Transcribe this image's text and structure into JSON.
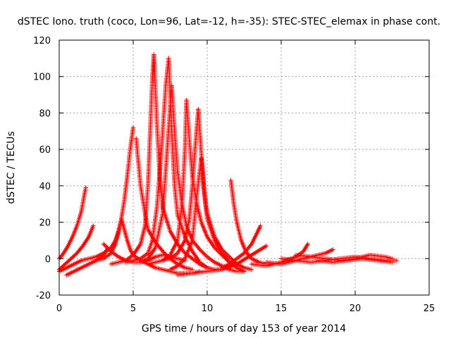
{
  "chart_data": {
    "type": "scatter",
    "title": "dSTEC Iono. truth (coco, Lon=96, Lat=-12, h=-35): STEC-STEC_elemax in phase cont.",
    "xlabel": "GPS time / hours of day 153 of year 2014",
    "ylabel": "dSTEC  / TECUs",
    "xlim": [
      0,
      25
    ],
    "ylim": [
      -20,
      120
    ],
    "x_ticks": [
      "0",
      "5",
      "10",
      "15",
      "20",
      "25"
    ],
    "y_ticks": [
      "-20",
      "0",
      "20",
      "40",
      "60",
      "80",
      "100",
      "120"
    ],
    "grid": true,
    "marker": "+",
    "series_color": "#ff0000",
    "series": [
      {
        "x": [
          0.0,
          0.3,
          0.6,
          0.9,
          1.2,
          1.5,
          1.7,
          1.8
        ],
        "y": [
          0,
          3,
          7,
          12,
          18,
          26,
          35,
          39
        ]
      },
      {
        "x": [
          0.0,
          0.4,
          0.8,
          1.2,
          1.6,
          2.0,
          2.3
        ],
        "y": [
          -6,
          -3,
          0,
          3,
          7,
          12,
          18
        ]
      },
      {
        "x": [
          0.0,
          0.5,
          1.0,
          1.5,
          2.0,
          2.5,
          3.0,
          3.5,
          3.8,
          4.0,
          4.2,
          4.4,
          4.6,
          4.8,
          5.0
        ],
        "y": [
          -7,
          -5,
          -3,
          -1,
          0,
          1,
          3,
          6,
          10,
          15,
          22,
          32,
          45,
          60,
          72
        ]
      },
      {
        "x": [
          0.5,
          1.0,
          1.5,
          2.0,
          2.5,
          3.0,
          3.3
        ],
        "y": [
          -9,
          -7,
          -5,
          -3,
          -1,
          2,
          6
        ]
      },
      {
        "x": [
          2.5,
          3.0,
          3.5,
          3.8,
          4.0,
          4.2,
          4.4,
          4.6,
          4.8,
          5.0,
          5.5,
          6.0,
          6.5,
          7.0,
          7.5,
          8.0,
          8.5,
          9.0,
          9.5
        ],
        "y": [
          -1,
          0,
          3,
          8,
          14,
          22,
          16,
          10,
          5,
          2,
          -1,
          -3,
          -5,
          -6,
          -7,
          -8,
          -8,
          -8,
          -7
        ]
      },
      {
        "x": [
          3.0,
          3.5,
          4.0,
          4.5,
          5.0,
          5.5,
          6.0,
          6.5,
          7.0,
          7.5,
          8.0,
          8.5
        ],
        "y": [
          8,
          4,
          1,
          -1,
          -2,
          -2,
          -1,
          1,
          2,
          1,
          0,
          -1
        ]
      },
      {
        "x": [
          5.2,
          5.5,
          5.8,
          6.0,
          6.5,
          7.0,
          7.5,
          8.0,
          8.5,
          9.0
        ],
        "y": [
          66,
          40,
          25,
          16,
          9,
          4,
          0,
          -3,
          -5,
          -6
        ]
      },
      {
        "x": [
          3.5,
          4.0,
          4.5,
          5.0,
          5.5,
          5.8,
          6.0,
          6.2,
          6.3,
          6.4
        ],
        "y": [
          -3,
          -2,
          -1,
          2,
          8,
          18,
          40,
          80,
          100,
          112
        ]
      },
      {
        "x": [
          6.4,
          6.6,
          6.8,
          7.0,
          7.5,
          8.0,
          8.5,
          9.0,
          9.5,
          10.0
        ],
        "y": [
          112,
          75,
          45,
          28,
          15,
          8,
          3,
          0,
          -3,
          -5
        ]
      },
      {
        "x": [
          4.5,
          5.0,
          5.5,
          6.0,
          6.3,
          6.6,
          6.9,
          7.2,
          7.4
        ],
        "y": [
          -2,
          -1,
          0,
          3,
          10,
          28,
          58,
          95,
          110
        ]
      },
      {
        "x": [
          7.4,
          7.6,
          7.8,
          8.0,
          8.5,
          9.0,
          9.5,
          10.0,
          10.5,
          11.0
        ],
        "y": [
          110,
          70,
          40,
          24,
          12,
          4,
          -2,
          -5,
          -6,
          -6
        ]
      },
      {
        "x": [
          5.5,
          6.0,
          6.5,
          7.0,
          7.3,
          7.6
        ],
        "y": [
          -2,
          0,
          6,
          25,
          60,
          95
        ]
      },
      {
        "x": [
          7.6,
          7.8,
          8.0,
          8.3,
          8.6,
          9.0,
          9.5,
          10.0,
          10.5,
          11.0,
          11.5,
          12.0,
          12.5
        ],
        "y": [
          95,
          70,
          48,
          30,
          18,
          10,
          5,
          1,
          -2,
          -4,
          -6,
          -7,
          -7
        ]
      },
      {
        "x": [
          6.0,
          6.5,
          7.0,
          7.5,
          8.0,
          8.3,
          8.5,
          8.6
        ],
        "y": [
          -3,
          -2,
          -1,
          2,
          10,
          30,
          60,
          87
        ]
      },
      {
        "x": [
          8.6,
          8.8,
          9.0,
          9.3,
          9.6,
          10.0,
          10.5,
          11.0,
          11.5,
          12.0
        ],
        "y": [
          87,
          65,
          45,
          30,
          20,
          12,
          6,
          2,
          -2,
          -4
        ]
      },
      {
        "x": [
          7.0,
          7.5,
          8.0,
          8.5,
          8.8,
          9.0,
          9.2,
          9.4
        ],
        "y": [
          -1,
          0,
          3,
          10,
          22,
          40,
          62,
          82
        ]
      },
      {
        "x": [
          9.4,
          9.6,
          9.8,
          10.0,
          10.5,
          11.0,
          11.5,
          12.0,
          12.5,
          13.0
        ],
        "y": [
          82,
          58,
          38,
          25,
          12,
          5,
          1,
          -3,
          -5,
          -6
        ]
      },
      {
        "x": [
          7.5,
          8.0,
          8.5,
          9.0,
          9.3,
          9.6
        ],
        "y": [
          -6,
          -4,
          0,
          10,
          35,
          55
        ]
      },
      {
        "x": [
          9.6,
          9.8,
          10.0,
          10.5,
          11.0,
          11.5,
          12.0,
          12.5
        ],
        "y": [
          55,
          35,
          22,
          10,
          3,
          -2,
          -5,
          -7
        ]
      },
      {
        "x": [
          11.6,
          11.8,
          12.0,
          12.3,
          12.6,
          13.0,
          13.5,
          14.0,
          14.5
        ],
        "y": [
          43,
          30,
          20,
          10,
          4,
          0,
          -2,
          -3,
          -3
        ]
      },
      {
        "x": [
          11.0,
          11.5,
          12.0,
          12.5,
          13.0,
          13.3,
          13.6
        ],
        "y": [
          -5,
          -3,
          0,
          3,
          8,
          13,
          18
        ]
      },
      {
        "x": [
          8.0,
          9.0,
          10.0,
          11.0,
          12.0,
          13.0,
          14.0
        ],
        "y": [
          -9,
          -8,
          -7,
          -6,
          -3,
          2,
          7
        ]
      },
      {
        "x": [
          13.0,
          14.0,
          15.0,
          16.0,
          16.5,
          16.8
        ],
        "y": [
          -3,
          -4,
          -2,
          1,
          4,
          8
        ]
      },
      {
        "x": [
          14.0,
          15.0,
          16.0,
          17.0,
          18.0,
          18.5
        ],
        "y": [
          -2,
          -3,
          -1,
          1,
          3,
          5
        ]
      },
      {
        "x": [
          15.0,
          16.0,
          17.0,
          18.0,
          19.0,
          20.0,
          21.0,
          22.0,
          22.8
        ],
        "y": [
          0,
          -1,
          -2,
          -1,
          0,
          1,
          0,
          -1,
          -1
        ]
      },
      {
        "x": [
          16.0,
          17.0,
          18.0,
          19.0,
          20.0,
          21.0,
          22.0,
          22.5
        ],
        "y": [
          2,
          1,
          0,
          -1,
          0,
          2,
          1,
          0
        ]
      },
      {
        "x": [
          17.5,
          18.5,
          19.5,
          20.5,
          21.5,
          22.5
        ],
        "y": [
          -1,
          -2,
          -1,
          0,
          -1,
          -2
        ]
      }
    ]
  }
}
